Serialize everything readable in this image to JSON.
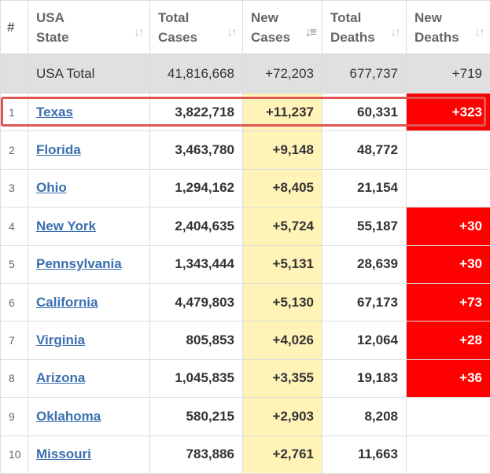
{
  "header": {
    "num": "#",
    "state": [
      "USA",
      "State"
    ],
    "total_cases": [
      "Total",
      "Cases"
    ],
    "new_cases": [
      "New",
      "Cases"
    ],
    "total_deaths": [
      "Total",
      "Deaths"
    ],
    "new_deaths": [
      "New",
      "Deaths"
    ],
    "sort_icon": "↓↑",
    "sort_active_icon": "↓≡"
  },
  "total": {
    "label": "USA Total",
    "total_cases": "41,816,668",
    "new_cases": "+72,203",
    "total_deaths": "677,737",
    "new_deaths": "+719"
  },
  "rows": [
    {
      "rank": "1",
      "state": "Texas",
      "total_cases": "3,822,718",
      "new_cases": "+11,237",
      "total_deaths": "60,331",
      "new_deaths": "+323"
    },
    {
      "rank": "2",
      "state": "Florida",
      "total_cases": "3,463,780",
      "new_cases": "+9,148",
      "total_deaths": "48,772",
      "new_deaths": ""
    },
    {
      "rank": "3",
      "state": "Ohio",
      "total_cases": "1,294,162",
      "new_cases": "+8,405",
      "total_deaths": "21,154",
      "new_deaths": ""
    },
    {
      "rank": "4",
      "state": "New York",
      "total_cases": "2,404,635",
      "new_cases": "+5,724",
      "total_deaths": "55,187",
      "new_deaths": "+30"
    },
    {
      "rank": "5",
      "state": "Pennsylvania",
      "total_cases": "1,343,444",
      "new_cases": "+5,131",
      "total_deaths": "28,639",
      "new_deaths": "+30"
    },
    {
      "rank": "6",
      "state": "California",
      "total_cases": "4,479,803",
      "new_cases": "+5,130",
      "total_deaths": "67,173",
      "new_deaths": "+73"
    },
    {
      "rank": "7",
      "state": "Virginia",
      "total_cases": "805,853",
      "new_cases": "+4,026",
      "total_deaths": "12,064",
      "new_deaths": "+28"
    },
    {
      "rank": "8",
      "state": "Arizona",
      "total_cases": "1,045,835",
      "new_cases": "+3,355",
      "total_deaths": "19,183",
      "new_deaths": "+36"
    },
    {
      "rank": "9",
      "state": "Oklahoma",
      "total_cases": "580,215",
      "new_cases": "+2,903",
      "total_deaths": "8,208",
      "new_deaths": ""
    },
    {
      "rank": "10",
      "state": "Missouri",
      "total_cases": "783,886",
      "new_cases": "+2,761",
      "total_deaths": "11,663",
      "new_deaths": ""
    }
  ],
  "colors": {
    "new_cases_bg": "#fff3b8",
    "new_deaths_bg": "#ff0000",
    "total_row_bg": "#e0e0e0",
    "link": "#3a6fb0",
    "highlight_border": "#e05555"
  }
}
